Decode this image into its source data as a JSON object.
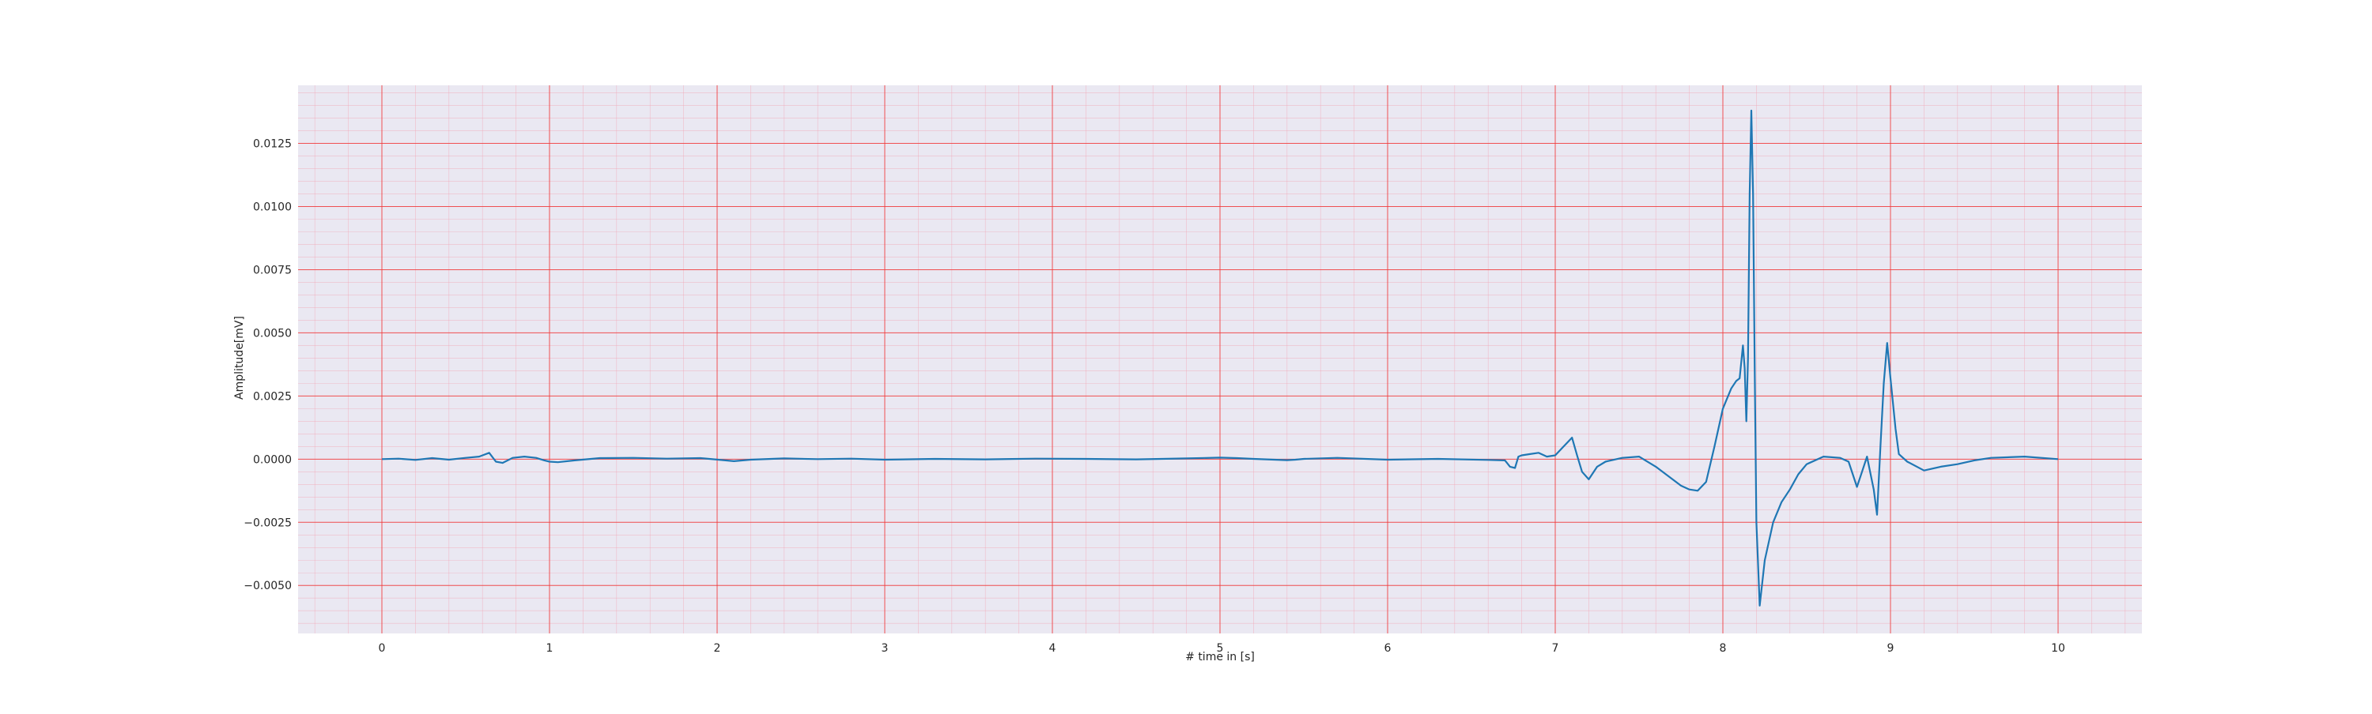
{
  "chart_data": {
    "type": "line",
    "title": "",
    "xlabel": "# time in [s]",
    "ylabel": "Amplitude[mV]",
    "xlim": [
      -0.5,
      10.5
    ],
    "ylim": [
      -0.0069,
      0.0148
    ],
    "x_ticks": [
      0,
      1,
      2,
      3,
      4,
      5,
      6,
      7,
      8,
      9,
      10
    ],
    "x_tick_labels": [
      "0",
      "1",
      "2",
      "3",
      "4",
      "5",
      "6",
      "7",
      "8",
      "9",
      "10"
    ],
    "y_ticks": [
      -0.005,
      -0.0025,
      0.0,
      0.0025,
      0.005,
      0.0075,
      0.01,
      0.0125
    ],
    "y_tick_labels": [
      "−0.0050",
      "−0.0025",
      "0.0000",
      "0.0025",
      "0.0050",
      "0.0075",
      "0.0100",
      "0.0125"
    ],
    "grid": true,
    "minor_grid": true,
    "legend": false,
    "colors": {
      "line": "#1f77b4",
      "major_grid": "#f03a3a",
      "minor_grid": "#f2a8b8",
      "plot_background": "#eae8f2"
    },
    "series": [
      {
        "x": [
          0.0,
          0.1,
          0.2,
          0.3,
          0.4,
          0.5,
          0.58,
          0.64,
          0.68,
          0.72,
          0.78,
          0.85,
          0.92,
          0.97,
          1.0,
          1.05,
          1.15,
          1.3,
          1.5,
          1.7,
          1.9,
          2.05,
          2.1,
          2.2,
          2.4,
          2.6,
          2.8,
          3.0,
          3.3,
          3.6,
          3.9,
          4.2,
          4.5,
          4.8,
          5.0,
          5.1,
          5.2,
          5.4,
          5.45,
          5.5,
          5.7,
          6.0,
          6.3,
          6.6,
          6.7,
          6.73,
          6.76,
          6.78,
          6.8,
          6.85,
          6.9,
          6.95,
          7.0,
          7.05,
          7.1,
          7.13,
          7.16,
          7.2,
          7.25,
          7.3,
          7.4,
          7.5,
          7.6,
          7.7,
          7.75,
          7.8,
          7.85,
          7.9,
          7.95,
          8.0,
          8.05,
          8.08,
          8.1,
          8.12,
          8.13,
          8.14,
          8.15,
          8.16,
          8.17,
          8.18,
          8.19,
          8.2,
          8.22,
          8.25,
          8.3,
          8.35,
          8.4,
          8.45,
          8.5,
          8.6,
          8.7,
          8.75,
          8.8,
          8.83,
          8.86,
          8.9,
          8.92,
          8.94,
          8.96,
          8.98,
          9.0,
          9.03,
          9.05,
          9.1,
          9.2,
          9.3,
          9.4,
          9.5,
          9.6,
          9.8,
          10.0
        ],
        "values": [
          0.0,
          2e-05,
          -3e-05,
          4e-05,
          -2e-05,
          5e-05,
          0.0001,
          0.00025,
          -0.0001,
          -0.00015,
          5e-05,
          0.0001,
          5e-05,
          -5e-05,
          -0.0001,
          -0.00012,
          -5e-05,
          4e-05,
          5e-05,
          2e-05,
          4e-05,
          -5e-05,
          -8e-05,
          -2e-05,
          3e-05,
          0.0,
          2e-05,
          -2e-05,
          1e-05,
          -1e-05,
          2e-05,
          1e-05,
          -1e-05,
          3e-05,
          6e-05,
          4e-05,
          1e-05,
          -4e-05,
          -2e-05,
          1e-05,
          5e-05,
          -2e-05,
          1e-05,
          -3e-05,
          -5e-05,
          -0.0003,
          -0.00035,
          0.0001,
          0.00015,
          0.0002,
          0.00025,
          0.0001,
          0.00015,
          0.0005,
          0.00085,
          0.00015,
          -0.0005,
          -0.0008,
          -0.0003,
          -0.0001,
          5e-05,
          0.0001,
          -0.0003,
          -0.0008,
          -0.00105,
          -0.0012,
          -0.00125,
          -0.0009,
          0.0005,
          0.002,
          0.0028,
          0.0031,
          0.0032,
          0.0045,
          0.0036,
          0.0015,
          0.004,
          0.0105,
          0.0138,
          0.0105,
          0.0035,
          -0.0025,
          -0.0058,
          -0.004,
          -0.0025,
          -0.0017,
          -0.0012,
          -0.0006,
          -0.0002,
          0.0001,
          5e-05,
          -0.0001,
          -0.0011,
          -0.0005,
          0.0001,
          -0.0012,
          -0.0022,
          0.0005,
          0.003,
          0.0046,
          0.0032,
          0.0012,
          0.0002,
          -0.0001,
          -0.00045,
          -0.0003,
          -0.0002,
          -5e-05,
          5e-05,
          0.0001,
          0.0
        ]
      }
    ]
  }
}
